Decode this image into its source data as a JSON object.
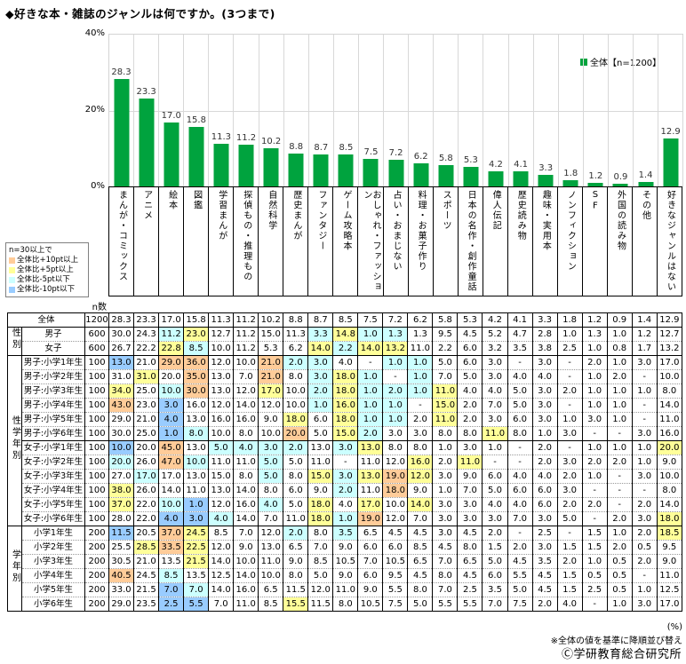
{
  "title": "◆好きな本・雑誌のジャンルは何ですか。(3つまで)",
  "legend": {
    "swatch_color": "#00A33E",
    "label": "全体【n=1200】"
  },
  "threshold_legend": {
    "header": "n=30以上で",
    "items": [
      {
        "label": "全体比+10pt以上",
        "color": "#FFCC99"
      },
      {
        "label": "全体比+5pt以上",
        "color": "#FFFF99"
      },
      {
        "label": "全体比-5pt以下",
        "color": "#CCFFFF"
      },
      {
        "label": "全体比-10pt以下",
        "color": "#99CCFF"
      }
    ]
  },
  "chart_data": {
    "type": "bar",
    "title": "好きな本・雑誌のジャンル(全体)",
    "series_name": "全体【n=1200】",
    "bar_color": "#00A33E",
    "ylim": [
      0,
      40
    ],
    "yticks": [
      "40%",
      "20%",
      "0%"
    ],
    "grid": true,
    "categories": [
      "まんが・コミックス",
      "アニメ",
      "絵本",
      "図鑑",
      "学習まんが",
      "探偵もの・推理もの",
      "自然科学",
      "歴史まんが",
      "ファンタジー",
      "ゲーム攻略本",
      "おしゃれ・ファッション",
      "占い・おまじない",
      "料理・お菓子作り",
      "スポーツ",
      "日本の名作・創作童話",
      "偉人伝記",
      "歴史読み物",
      "趣味・実用本",
      "ノンフィクション",
      "SF",
      "外国の読み物",
      "その他",
      "好きなジャンルはない"
    ],
    "values": [
      28.3,
      23.3,
      17.0,
      15.8,
      11.3,
      11.2,
      10.2,
      8.8,
      8.7,
      8.5,
      7.5,
      7.2,
      6.2,
      5.8,
      5.3,
      4.2,
      4.1,
      3.3,
      1.8,
      1.2,
      0.9,
      1.4,
      12.9
    ]
  },
  "palette": {
    "plus10pt": "#FFCC99",
    "plus5pt": "#FFFF99",
    "minus5pt": "#CCFFFF",
    "minus10pt": "#99CCFF"
  },
  "table": {
    "n_header": "n数",
    "groups": [
      {
        "label": "",
        "rows": [
          {
            "name": "全体",
            "n": "1200",
            "values": [
              "28.3",
              "23.3",
              "17.0",
              "15.8",
              "11.3",
              "11.2",
              "10.2",
              "8.8",
              "8.7",
              "8.5",
              "7.5",
              "7.2",
              "6.2",
              "5.8",
              "5.3",
              "4.2",
              "4.1",
              "3.3",
              "1.8",
              "1.2",
              "0.9",
              "1.4",
              "12.9"
            ]
          }
        ]
      },
      {
        "label": "性別",
        "rows": [
          {
            "name": "男子",
            "n": "600",
            "values": [
              "30.0",
              "24.3",
              "11.2",
              "23.0",
              "12.7",
              "11.2",
              "15.0",
              "11.3",
              "3.3",
              "14.8",
              "1.0",
              "1.3",
              "1.3",
              "9.5",
              "4.5",
              "5.2",
              "4.7",
              "2.8",
              "1.0",
              "1.3",
              "1.0",
              "1.2",
              "12.7"
            ]
          },
          {
            "name": "女子",
            "n": "600",
            "values": [
              "26.7",
              "22.2",
              "22.8",
              "8.5",
              "10.0",
              "11.2",
              "5.3",
              "6.2",
              "14.0",
              "2.2",
              "14.0",
              "13.2",
              "11.0",
              "2.2",
              "6.0",
              "3.2",
              "3.5",
              "3.8",
              "2.5",
              "1.0",
              "0.8",
              "1.7",
              "13.2"
            ]
          }
        ]
      },
      {
        "label": "性学年別",
        "rows": [
          {
            "name": "男子:小学1年生",
            "n": "100",
            "values": [
              "13.0",
              "21.0",
              "29.0",
              "36.0",
              "12.0",
              "10.0",
              "21.0",
              "2.0",
              "3.0",
              "4.0",
              "-",
              "1.0",
              "1.0",
              "5.0",
              "6.0",
              "3.0",
              "-",
              "3.0",
              "-",
              "2.0",
              "1.0",
              "3.0",
              "17.0"
            ]
          },
          {
            "name": "男子:小学2年生",
            "n": "100",
            "values": [
              "31.0",
              "31.0",
              "20.0",
              "35.0",
              "13.0",
              "7.0",
              "21.0",
              "8.0",
              "3.0",
              "18.0",
              "1.0",
              "-",
              "1.0",
              "7.0",
              "5.0",
              "3.0",
              "4.0",
              "4.0",
              "-",
              "1.0",
              "2.0",
              "-",
              "10.0"
            ]
          },
          {
            "name": "男子:小学3年生",
            "n": "100",
            "values": [
              "34.0",
              "25.0",
              "10.0",
              "30.0",
              "13.0",
              "12.0",
              "17.0",
              "10.0",
              "2.0",
              "18.0",
              "1.0",
              "2.0",
              "1.0",
              "11.0",
              "4.0",
              "4.0",
              "5.0",
              "3.0",
              "2.0",
              "1.0",
              "1.0",
              "1.0",
              "8.0"
            ]
          },
          {
            "name": "男子:小学4年生",
            "n": "100",
            "values": [
              "43.0",
              "23.0",
              "3.0",
              "16.0",
              "12.0",
              "14.0",
              "12.0",
              "10.0",
              "1.0",
              "16.0",
              "1.0",
              "1.0",
              "-",
              "15.0",
              "2.0",
              "7.0",
              "5.0",
              "3.0",
              "-",
              "1.0",
              "1.0",
              "-",
              "14.0"
            ]
          },
          {
            "name": "男子:小学5年生",
            "n": "100",
            "values": [
              "29.0",
              "21.0",
              "4.0",
              "13.0",
              "16.0",
              "16.0",
              "9.0",
              "18.0",
              "6.0",
              "18.0",
              "1.0",
              "1.0",
              "2.0",
              "11.0",
              "2.0",
              "3.0",
              "6.0",
              "3.0",
              "1.0",
              "3.0",
              "1.0",
              "-",
              "11.0"
            ]
          },
          {
            "name": "男子:小学6年生",
            "n": "100",
            "values": [
              "30.0",
              "25.0",
              "1.0",
              "8.0",
              "10.0",
              "8.0",
              "10.0",
              "20.0",
              "5.0",
              "15.0",
              "2.0",
              "3.0",
              "3.0",
              "8.0",
              "8.0",
              "11.0",
              "8.0",
              "1.0",
              "3.0",
              "-",
              "-",
              "3.0",
              "16.0"
            ]
          },
          {
            "name": "女子:小学1年生",
            "n": "100",
            "values": [
              "10.0",
              "20.0",
              "45.0",
              "13.0",
              "5.0",
              "4.0",
              "3.0",
              "2.0",
              "13.0",
              "3.0",
              "13.0",
              "8.0",
              "8.0",
              "1.0",
              "3.0",
              "1.0",
              "-",
              "2.0",
              "-",
              "1.0",
              "1.0",
              "1.0",
              "20.0"
            ]
          },
          {
            "name": "女子:小学2年生",
            "n": "100",
            "values": [
              "20.0",
              "26.0",
              "47.0",
              "10.0",
              "11.0",
              "11.0",
              "5.0",
              "5.0",
              "11.0",
              "-",
              "11.0",
              "12.0",
              "16.0",
              "2.0",
              "11.0",
              "-",
              "-",
              "2.0",
              "3.0",
              "2.0",
              "2.0",
              "1.0",
              "9.0"
            ]
          },
          {
            "name": "女子:小学3年生",
            "n": "100",
            "values": [
              "27.0",
              "17.0",
              "17.0",
              "13.0",
              "15.0",
              "8.0",
              "5.0",
              "8.0",
              "15.0",
              "3.0",
              "13.0",
              "19.0",
              "12.0",
              "3.0",
              "9.0",
              "6.0",
              "4.0",
              "4.0",
              "2.0",
              "1.0",
              "-",
              "3.0",
              "10.0"
            ]
          },
          {
            "name": "女子:小学4年生",
            "n": "100",
            "values": [
              "38.0",
              "26.0",
              "14.0",
              "11.0",
              "13.0",
              "14.0",
              "8.0",
              "6.0",
              "9.0",
              "2.0",
              "11.0",
              "18.0",
              "9.0",
              "1.0",
              "7.0",
              "5.0",
              "6.0",
              "6.0",
              "3.0",
              "-",
              "-",
              "-",
              "8.0"
            ]
          },
          {
            "name": "女子:小学5年生",
            "n": "100",
            "values": [
              "37.0",
              "22.0",
              "10.0",
              "1.0",
              "12.0",
              "16.0",
              "4.0",
              "5.0",
              "18.0",
              "4.0",
              "17.0",
              "10.0",
              "14.0",
              "3.0",
              "3.0",
              "4.0",
              "4.0",
              "6.0",
              "2.0",
              "2.0",
              "-",
              "2.0",
              "14.0"
            ]
          },
          {
            "name": "女子:小学6年生",
            "n": "100",
            "values": [
              "28.0",
              "22.0",
              "4.0",
              "3.0",
              "4.0",
              "14.0",
              "7.0",
              "11.0",
              "18.0",
              "1.0",
              "19.0",
              "12.0",
              "7.0",
              "3.0",
              "3.0",
              "3.0",
              "7.0",
              "3.0",
              "5.0",
              "-",
              "2.0",
              "3.0",
              "18.0"
            ]
          }
        ]
      },
      {
        "label": "学年別",
        "rows": [
          {
            "name": "小学1年生",
            "n": "200",
            "values": [
              "11.5",
              "20.5",
              "37.0",
              "24.5",
              "8.5",
              "7.0",
              "12.0",
              "2.0",
              "8.0",
              "3.5",
              "6.5",
              "4.5",
              "4.5",
              "3.0",
              "4.5",
              "2.0",
              "-",
              "2.5",
              "-",
              "1.5",
              "1.0",
              "2.0",
              "18.5"
            ]
          },
          {
            "name": "小学2年生",
            "n": "200",
            "values": [
              "25.5",
              "28.5",
              "33.5",
              "22.5",
              "12.0",
              "9.0",
              "13.0",
              "6.5",
              "7.0",
              "9.0",
              "6.0",
              "6.0",
              "8.5",
              "4.5",
              "8.0",
              "1.5",
              "2.0",
              "3.0",
              "1.5",
              "1.5",
              "2.0",
              "0.5",
              "9.5"
            ]
          },
          {
            "name": "小学3年生",
            "n": "200",
            "values": [
              "30.5",
              "21.0",
              "13.5",
              "21.5",
              "14.0",
              "10.0",
              "11.0",
              "9.0",
              "8.5",
              "10.5",
              "7.0",
              "10.5",
              "6.5",
              "7.0",
              "6.5",
              "5.0",
              "4.5",
              "3.5",
              "2.0",
              "1.0",
              "0.5",
              "2.0",
              "9.0"
            ]
          },
          {
            "name": "小学4年生",
            "n": "200",
            "values": [
              "40.5",
              "24.5",
              "8.5",
              "13.5",
              "12.5",
              "14.0",
              "10.0",
              "8.0",
              "5.0",
              "9.0",
              "6.0",
              "9.5",
              "4.5",
              "8.0",
              "4.5",
              "6.0",
              "5.5",
              "4.5",
              "1.5",
              "0.5",
              "0.5",
              "-",
              "11.0"
            ]
          },
          {
            "name": "小学5年生",
            "n": "200",
            "values": [
              "33.0",
              "21.5",
              "7.0",
              "7.0",
              "14.0",
              "16.0",
              "6.5",
              "11.5",
              "12.0",
              "11.0",
              "9.0",
              "5.5",
              "8.0",
              "7.0",
              "2.5",
              "3.5",
              "5.0",
              "4.5",
              "1.5",
              "2.5",
              "0.5",
              "1.0",
              "12.5"
            ]
          },
          {
            "name": "小学6年生",
            "n": "200",
            "values": [
              "29.0",
              "23.5",
              "2.5",
              "5.5",
              "7.0",
              "11.0",
              "8.5",
              "15.5",
              "11.5",
              "8.0",
              "10.5",
              "7.5",
              "5.0",
              "5.5",
              "5.5",
              "7.0",
              "7.5",
              "2.0",
              "4.0",
              "-",
              "1.0",
              "3.0",
              "17.0"
            ]
          }
        ]
      }
    ]
  },
  "footnotes": {
    "unit": "(%)",
    "sort_note": "※全体の値を基準に降順並び替え",
    "copyright": "Ⓒ学研教育総合研究所"
  }
}
